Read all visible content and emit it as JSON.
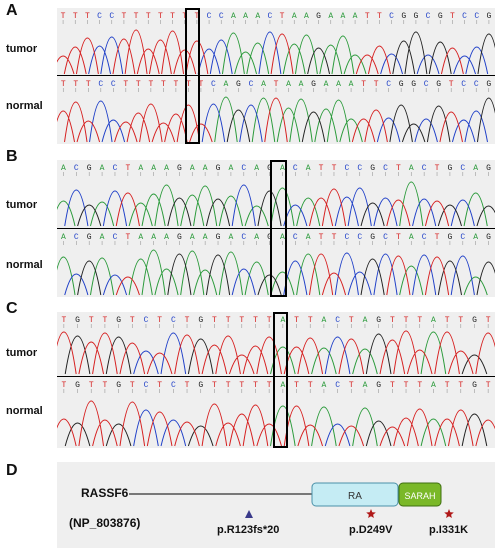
{
  "panels": [
    {
      "letter": "A",
      "rows": [
        {
          "label": "tumor",
          "seq": "TTTCCTTTTTTTCCAAACTAAGAAATTCGGCGTCCG"
        },
        {
          "label": "normal",
          "seq": "TTTCCTTTTTTTCAGCATAAGAAATTCGGCGTCCG"
        }
      ]
    },
    {
      "letter": "B",
      "rows": [
        {
          "label": "tumor",
          "seq": "ACGACTAAAGAAGACAGACATTCCGCTACTGCAG"
        },
        {
          "label": "normal",
          "seq": "ACGACTAAAGAAGACAGACATTCCGCTACTGCAG"
        }
      ]
    },
    {
      "letter": "C",
      "rows": [
        {
          "label": "tumor",
          "seq": "TGTTGTCTCTGTTTTTATTACTAGTTTATTGT"
        },
        {
          "label": "normal",
          "seq": "TGTTGTCTCTGTTTTTATTACTAGTTTATTGT"
        }
      ]
    }
  ],
  "base_colors": {
    "A": "#2a9a3a",
    "C": "#2040c8",
    "G": "#222222",
    "T": "#d62020"
  },
  "protein": {
    "letter": "D",
    "name": "RASSF6",
    "accession": "(NP_803876)",
    "domains": [
      {
        "label": "RA",
        "fill": "#c5ecf4",
        "stroke": "#4a90a8"
      },
      {
        "label": "SARAH",
        "fill": "#7ab828",
        "stroke": "#3f6f10"
      }
    ],
    "mutations": [
      {
        "label": "p.R123fs*20",
        "marker": "triangle",
        "color": "#3a3a8a"
      },
      {
        "label": "p.D249V",
        "marker": "star",
        "color": "#b01818"
      },
      {
        "label": "p.I331K",
        "marker": "star",
        "color": "#b01818"
      }
    ]
  }
}
